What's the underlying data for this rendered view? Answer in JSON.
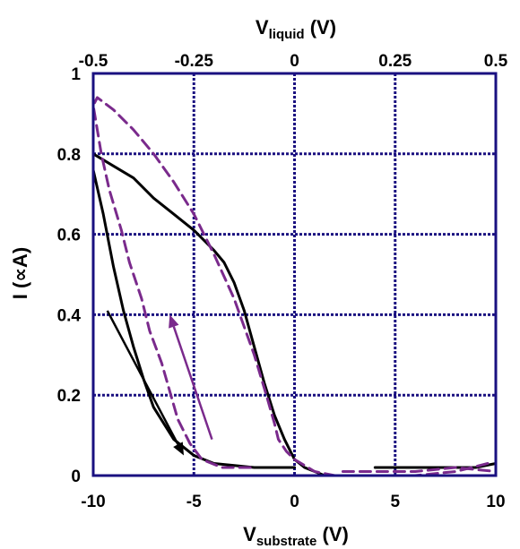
{
  "chart_data": {
    "type": "line",
    "title": "",
    "top_axis": {
      "label_main": "V",
      "label_sub": "liquid",
      "label_unit": " (V)",
      "range": [
        -0.5,
        0.5
      ],
      "ticks": [
        -0.5,
        -0.25,
        0,
        0.25,
        0.5
      ],
      "tick_labels": [
        "-0.5",
        "-0.25",
        "0",
        "0.25",
        "0.5"
      ]
    },
    "x_axis": {
      "label_main": "V",
      "label_sub": "substrate",
      "label_unit": " (V)",
      "range": [
        -10,
        10
      ],
      "ticks": [
        -10,
        -5,
        0,
        5,
        10
      ],
      "tick_labels": [
        "-10",
        "-5",
        "0",
        "5",
        "10"
      ]
    },
    "y_axis": {
      "label": "I (∝A)",
      "range": [
        0,
        1
      ],
      "ticks": [
        0,
        0.2,
        0.4,
        0.6,
        0.8,
        1
      ],
      "tick_labels": [
        "0",
        "0.2",
        "0.4",
        "0.6",
        "0.8",
        "1"
      ]
    },
    "grid": true,
    "colors": {
      "frame": "#1a1080",
      "grid": "#1a1080",
      "substrate_curve": "#000000",
      "liquid_curve": "#7a2a8c"
    },
    "series": [
      {
        "axis": "bottom",
        "style": "solid",
        "color": "#000000",
        "points": [
          [
            1.5,
            0.0
          ],
          [
            0.5,
            0.02
          ],
          [
            0,
            0.04
          ],
          [
            -0.5,
            0.09
          ],
          [
            -1,
            0.15
          ],
          [
            -1.5,
            0.23
          ],
          [
            -2,
            0.32
          ],
          [
            -2.5,
            0.41
          ],
          [
            -3,
            0.48
          ],
          [
            -3.5,
            0.53
          ],
          [
            -4,
            0.56
          ],
          [
            -5,
            0.61
          ],
          [
            -6,
            0.65
          ],
          [
            -7,
            0.69
          ],
          [
            -8,
            0.74
          ],
          [
            -9,
            0.77
          ],
          [
            -10,
            0.8
          ],
          [
            -10,
            0.76
          ],
          [
            -9.5,
            0.65
          ],
          [
            -9,
            0.52
          ],
          [
            -8.5,
            0.41
          ],
          [
            -8,
            0.32
          ],
          [
            -7.5,
            0.24
          ],
          [
            -7,
            0.17
          ],
          [
            -6,
            0.09
          ],
          [
            -5,
            0.05
          ],
          [
            -4,
            0.03
          ],
          [
            -2,
            0.02
          ],
          [
            0,
            0.02
          ]
        ]
      },
      {
        "axis": "bottom",
        "style": "solid",
        "color": "#000000",
        "points": [
          [
            4,
            0.02
          ],
          [
            5,
            0.02
          ],
          [
            6,
            0.02
          ],
          [
            7,
            0.02
          ],
          [
            8,
            0.02
          ],
          [
            9,
            0.02
          ],
          [
            10,
            0.03
          ]
        ]
      },
      {
        "axis": "top",
        "style": "dashed",
        "color": "#7a2a8c",
        "points": [
          [
            0.48,
            0.03
          ],
          [
            0.44,
            0.02
          ],
          [
            0.4,
            0.01
          ],
          [
            0.3,
            0.0
          ],
          [
            0.2,
            0.0
          ],
          [
            0.1,
            0.0
          ],
          [
            0.05,
            0.01
          ],
          [
            0.0,
            0.04
          ],
          [
            -0.02,
            0.06
          ],
          [
            -0.04,
            0.09
          ],
          [
            -0.05,
            0.13
          ],
          [
            -0.07,
            0.2
          ],
          [
            -0.1,
            0.3
          ],
          [
            -0.15,
            0.44
          ],
          [
            -0.2,
            0.55
          ],
          [
            -0.25,
            0.65
          ],
          [
            -0.3,
            0.73
          ],
          [
            -0.35,
            0.8
          ],
          [
            -0.4,
            0.86
          ],
          [
            -0.45,
            0.91
          ],
          [
            -0.49,
            0.94
          ],
          [
            -0.5,
            0.92
          ],
          [
            -0.48,
            0.8
          ],
          [
            -0.46,
            0.71
          ],
          [
            -0.43,
            0.61
          ],
          [
            -0.41,
            0.53
          ],
          [
            -0.38,
            0.44
          ],
          [
            -0.36,
            0.36
          ],
          [
            -0.33,
            0.28
          ],
          [
            -0.31,
            0.21
          ],
          [
            -0.29,
            0.14
          ],
          [
            -0.26,
            0.08
          ],
          [
            -0.23,
            0.04
          ],
          [
            -0.18,
            0.02
          ],
          [
            -0.1,
            0.02
          ]
        ]
      },
      {
        "axis": "top",
        "style": "dashed",
        "color": "#7a2a8c",
        "points": [
          [
            0.12,
            0.01
          ],
          [
            0.2,
            0.01
          ],
          [
            0.3,
            0.01
          ],
          [
            0.4,
            0.02
          ],
          [
            0.5,
            0.01
          ]
        ]
      }
    ],
    "arrows": [
      {
        "color": "#000000",
        "from": [
          -9.3,
          0.41
        ],
        "to": [
          -5.5,
          0.05
        ],
        "axis": "bottom"
      },
      {
        "color": "#7a2a8c",
        "from": [
          -4.1,
          0.09
        ],
        "to": [
          -6.2,
          0.4
        ],
        "axis": "bottom"
      }
    ]
  }
}
